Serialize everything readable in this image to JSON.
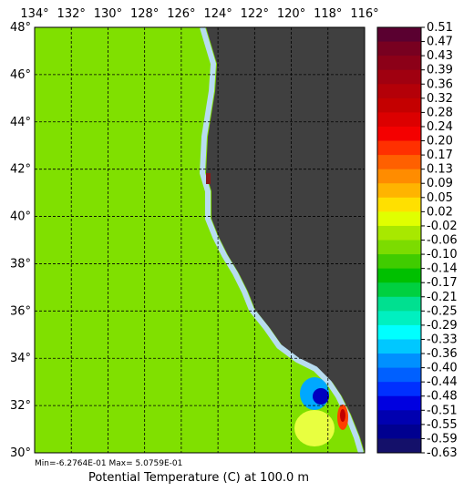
{
  "lon_labels": [
    "134°",
    "132°",
    "130°",
    "128°",
    "126°",
    "124°",
    "122°",
    "120°",
    "118°",
    "116°"
  ],
  "lat_labels": [
    "48°",
    "46°",
    "44°",
    "42°",
    "40°",
    "38°",
    "36°",
    "34°",
    "32°",
    "30°"
  ],
  "colorbar": {
    "labels": [
      "0.51",
      "0.47",
      "0.43",
      "0.39",
      "0.36",
      "0.32",
      "0.28",
      "0.24",
      "0.20",
      "0.17",
      "0.13",
      "0.09",
      "0.05",
      "0.02",
      "-0.02",
      "-0.06",
      "-0.10",
      "-0.14",
      "-0.17",
      "-0.21",
      "-0.25",
      "-0.29",
      "-0.33",
      "-0.36",
      "-0.40",
      "-0.44",
      "-0.48",
      "-0.51",
      "-0.55",
      "-0.59",
      "-0.63"
    ],
    "colors": [
      "#5a0030",
      "#780020",
      "#8c0018",
      "#a00010",
      "#b40008",
      "#c40000",
      "#dc0000",
      "#f40000",
      "#ff3000",
      "#ff6000",
      "#ff8c00",
      "#ffb400",
      "#ffe000",
      "#e0ff00",
      "#a8e800",
      "#7cdc00",
      "#40cc00",
      "#00c000",
      "#00d040",
      "#00e090",
      "#00f0c0",
      "#00ffff",
      "#00c8ff",
      "#0090ff",
      "#0060ff",
      "#0030ff",
      "#0000e0",
      "#0000b0",
      "#000090",
      "#14106a"
    ]
  },
  "min_max": "Min=-6.2764E-01  Max= 5.0759E-01",
  "title": "Potential Temperature (C) at 100.0 m"
}
